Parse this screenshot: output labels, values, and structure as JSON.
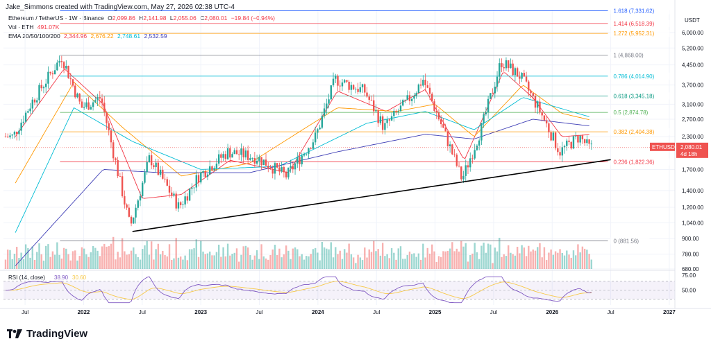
{
  "header": {
    "credit": "Jake_Simmons created with TradingView.com, May 27, 2026 02:38 UTC-4"
  },
  "legend": {
    "symbol": "Ethereum / TetherUS · 1W · Binance",
    "o_label": "O",
    "o_value": "2,099.86",
    "h_label": "H",
    "h_value": "2,141.98",
    "l_label": "L",
    "l_value": "2,055.06",
    "c_label": "C",
    "c_value": "2,080.01",
    "change": "−19.84 (−0.94%)",
    "vol_label": "Vol · ETH",
    "vol_value": "491.07K",
    "ema_label": "EMA 20/50/100/200",
    "ema20": "2,344.96",
    "ema50": "2,676.22",
    "ema100": "2,748.61",
    "ema200": "2,532.59"
  },
  "price_axis": {
    "currency": "USDT",
    "ticks": [
      "6,000.00",
      "5,200.00",
      "4,450.00",
      "3,700.00",
      "3,100.00",
      "2,700.00",
      "2,300.00",
      "1,700.00",
      "1,400.00",
      "1,200.00",
      "1,040.00",
      "900.00",
      "780.00",
      "680.00"
    ],
    "last_label": "ETHUSDT",
    "last_price": "2,080.01",
    "last_countdown": "4d 18h"
  },
  "time_axis": {
    "labels": [
      "Jul",
      "2022",
      "Jul",
      "2023",
      "Jul",
      "2024",
      "Jul",
      "2025",
      "Jul",
      "2026",
      "Jul",
      "2027"
    ]
  },
  "rsi": {
    "label": "RSI (14, close)",
    "value": "38.90",
    "value2": "30.60",
    "ticks": [
      "75.00",
      "50.00"
    ]
  },
  "branding": {
    "name": "TradingView"
  },
  "colors": {
    "up": "#26a69a",
    "down": "#ef5350",
    "ema20": "#f23645",
    "ema50": "#ff9800",
    "ema100": "#00bcd4",
    "ema200": "#3f3fb6"
  },
  "chart_data": {
    "type": "candlestick",
    "title": "Ethereum / TetherUS · 1W · Binance",
    "xlabel": "",
    "ylabel": "",
    "y_scale": "log",
    "ylim": [
      680,
      7400
    ],
    "fib_levels": [
      {
        "ratio": "1.618",
        "price": "7,331.62",
        "value": 7331.62,
        "color": "#2962ff"
      },
      {
        "ratio": "1.414",
        "price": "6,518.39",
        "value": 6518.39,
        "color": "#f23645"
      },
      {
        "ratio": "1.272",
        "price": "5,952.31",
        "value": 5952.31,
        "color": "#ff9800"
      },
      {
        "ratio": "1",
        "price": "4,868.00",
        "value": 4868.0,
        "color": "#787b86"
      },
      {
        "ratio": "0.786",
        "price": "4,014.90",
        "value": 4014.9,
        "color": "#00bcd4"
      },
      {
        "ratio": "0.618",
        "price": "3,345.18",
        "value": 3345.18,
        "color": "#089981"
      },
      {
        "ratio": "0.5",
        "price": "2,874.78",
        "value": 2874.78,
        "color": "#4caf50"
      },
      {
        "ratio": "0.382",
        "price": "2,404.38",
        "value": 2404.38,
        "color": "#ff9800"
      },
      {
        "ratio": "0.236",
        "price": "1,822.36",
        "value": 1822.36,
        "color": "#f23645"
      },
      {
        "ratio": "0",
        "price": "881.56",
        "value": 881.56,
        "color": "#787b86"
      }
    ],
    "trendline": {
      "from": [
        "2022-06",
        960
      ],
      "to": [
        "2026-07",
        1860
      ]
    },
    "price_path": [
      [
        "2021-06",
        2300
      ],
      [
        "2021-08",
        3200
      ],
      [
        "2021-11",
        4800
      ],
      [
        "2022-01",
        3000
      ],
      [
        "2022-03",
        3300
      ],
      [
        "2022-06",
        1000
      ],
      [
        "2022-08",
        1900
      ],
      [
        "2022-11",
        1200
      ],
      [
        "2023-01",
        1600
      ],
      [
        "2023-04",
        2000
      ],
      [
        "2023-07",
        1900
      ],
      [
        "2023-10",
        1600
      ],
      [
        "2024-01",
        2300
      ],
      [
        "2024-03",
        3900
      ],
      [
        "2024-06",
        3500
      ],
      [
        "2024-08",
        2500
      ],
      [
        "2024-11",
        3400
      ],
      [
        "2024-12",
        3900
      ],
      [
        "2025-02",
        2500
      ],
      [
        "2025-04",
        1550
      ],
      [
        "2025-06",
        2500
      ],
      [
        "2025-08",
        4600
      ],
      [
        "2025-10",
        4000
      ],
      [
        "2025-12",
        2900
      ],
      [
        "2026-02",
        2000
      ],
      [
        "2026-04",
        2300
      ],
      [
        "2026-05",
        2080
      ]
    ],
    "ema20": [
      [
        "2021-06",
        2300
      ],
      [
        "2021-11",
        4300
      ],
      [
        "2022-03",
        3100
      ],
      [
        "2022-07",
        1300
      ],
      [
        "2022-11",
        1350
      ],
      [
        "2023-04",
        1850
      ],
      [
        "2023-10",
        1650
      ],
      [
        "2024-03",
        3500
      ],
      [
        "2024-08",
        2900
      ],
      [
        "2024-12",
        3550
      ],
      [
        "2025-04",
        1850
      ],
      [
        "2025-08",
        4200
      ],
      [
        "2025-11",
        3300
      ],
      [
        "2026-02",
        2300
      ],
      [
        "2026-05",
        2345
      ]
    ],
    "ema50": [
      [
        "2021-06",
        1500
      ],
      [
        "2021-12",
        3800
      ],
      [
        "2022-05",
        2500
      ],
      [
        "2022-11",
        1600
      ],
      [
        "2023-06",
        1800
      ],
      [
        "2024-03",
        3000
      ],
      [
        "2024-09",
        2900
      ],
      [
        "2025-01",
        3100
      ],
      [
        "2025-05",
        2300
      ],
      [
        "2025-10",
        3700
      ],
      [
        "2026-02",
        2850
      ],
      [
        "2026-05",
        2676
      ]
    ],
    "ema100": [
      [
        "2021-06",
        950
      ],
      [
        "2021-12",
        3000
      ],
      [
        "2022-06",
        2200
      ],
      [
        "2023-01",
        1700
      ],
      [
        "2023-09",
        1750
      ],
      [
        "2024-06",
        2600
      ],
      [
        "2024-12",
        2900
      ],
      [
        "2025-05",
        2450
      ],
      [
        "2025-10",
        3300
      ],
      [
        "2026-05",
        2749
      ]
    ],
    "ema200": [
      [
        "2021-06",
        700
      ],
      [
        "2022-03",
        1700
      ],
      [
        "2022-09",
        1650
      ],
      [
        "2023-06",
        1650
      ],
      [
        "2024-03",
        2000
      ],
      [
        "2024-12",
        2350
      ],
      [
        "2025-05",
        2250
      ],
      [
        "2025-11",
        2700
      ],
      [
        "2026-05",
        2533
      ]
    ]
  }
}
